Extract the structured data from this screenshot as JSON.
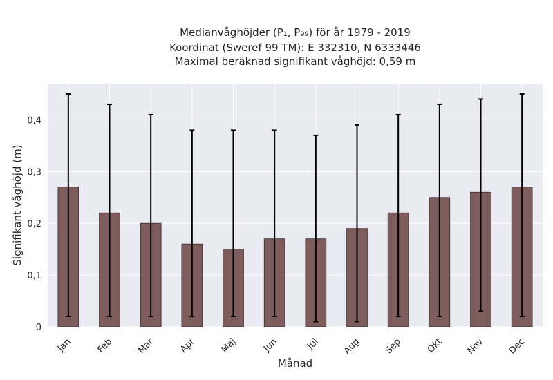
{
  "chart_data": {
    "type": "bar",
    "title_lines": [
      "Medianvåghöjder (P₁, P₉₉) för år 1979 - 2019",
      "Koordinat (Sweref 99 TM): E 332310, N 6333446",
      "Maximal beräknad signifikant våghöjd: 0,59 m"
    ],
    "xlabel": "Månad",
    "ylabel": "Signifikant våghöjd (m)",
    "categories": [
      "Jan",
      "Feb",
      "Mar",
      "Apr",
      "Maj",
      "Jun",
      "Jul",
      "Aug",
      "Sep",
      "Okt",
      "Nov",
      "Dec"
    ],
    "values": [
      0.27,
      0.22,
      0.2,
      0.16,
      0.15,
      0.17,
      0.17,
      0.19,
      0.22,
      0.25,
      0.26,
      0.27
    ],
    "error_low": [
      0.02,
      0.02,
      0.02,
      0.02,
      0.02,
      0.02,
      0.01,
      0.01,
      0.02,
      0.02,
      0.03,
      0.02
    ],
    "error_high": [
      0.45,
      0.43,
      0.41,
      0.38,
      0.38,
      0.38,
      0.37,
      0.39,
      0.41,
      0.43,
      0.44,
      0.45
    ],
    "ylim": [
      0,
      0.47
    ],
    "yticks": [
      0,
      0.1,
      0.2,
      0.3,
      0.4
    ],
    "ytick_labels": [
      "0",
      "0,1",
      "0,2",
      "0,3",
      "0,4"
    ],
    "grid": true,
    "colors": {
      "bar": "#7e5c5c",
      "bar_edge": "#3a2a2a",
      "errorbar": "#000000",
      "plot_bg": "#eaeaf2",
      "grid": "#ffffff"
    }
  }
}
